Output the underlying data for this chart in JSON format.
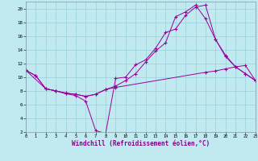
{
  "xlabel": "Windchill (Refroidissement éolien,°C)",
  "bg_color": "#c0eaf0",
  "grid_color": "#98d0dc",
  "line_color": "#990099",
  "xlim": [
    0,
    23
  ],
  "ylim": [
    2,
    21
  ],
  "xticks": [
    0,
    1,
    2,
    3,
    4,
    5,
    6,
    7,
    8,
    9,
    10,
    11,
    12,
    13,
    14,
    15,
    16,
    17,
    18,
    19,
    20,
    21,
    22,
    23
  ],
  "yticks": [
    2,
    4,
    6,
    8,
    10,
    12,
    14,
    16,
    18,
    20
  ],
  "line1": {
    "x": [
      0,
      1,
      2,
      3,
      4,
      5,
      6,
      7,
      8,
      9,
      10,
      11,
      12,
      13,
      14,
      15,
      16,
      17,
      18,
      19,
      20,
      21,
      22,
      23
    ],
    "y": [
      11,
      10.2,
      8.3,
      8.0,
      7.6,
      7.3,
      6.5,
      2.2,
      1.8,
      9.8,
      10.0,
      11.8,
      12.5,
      14.2,
      16.5,
      17.0,
      19.0,
      20.2,
      20.5,
      15.5,
      13.0,
      11.5,
      10.5,
      9.5
    ]
  },
  "line2": {
    "x": [
      0,
      2,
      3,
      4,
      5,
      6,
      7,
      8,
      9,
      18,
      19,
      20,
      21,
      22,
      23
    ],
    "y": [
      11,
      8.3,
      8.0,
      7.7,
      7.5,
      7.2,
      7.5,
      8.2,
      8.5,
      10.7,
      10.9,
      11.2,
      11.5,
      11.7,
      9.5
    ]
  },
  "line3": {
    "x": [
      0,
      1,
      2,
      3,
      4,
      5,
      6,
      7,
      8,
      9,
      10,
      11,
      12,
      13,
      14,
      15,
      16,
      17,
      18,
      19,
      20,
      21,
      22,
      23
    ],
    "y": [
      11,
      10.2,
      8.3,
      8.0,
      7.6,
      7.5,
      7.2,
      7.5,
      8.2,
      8.7,
      9.5,
      10.5,
      12.2,
      13.8,
      15.0,
      18.8,
      19.5,
      20.5,
      18.5,
      15.5,
      13.2,
      11.5,
      10.5,
      9.5
    ]
  }
}
